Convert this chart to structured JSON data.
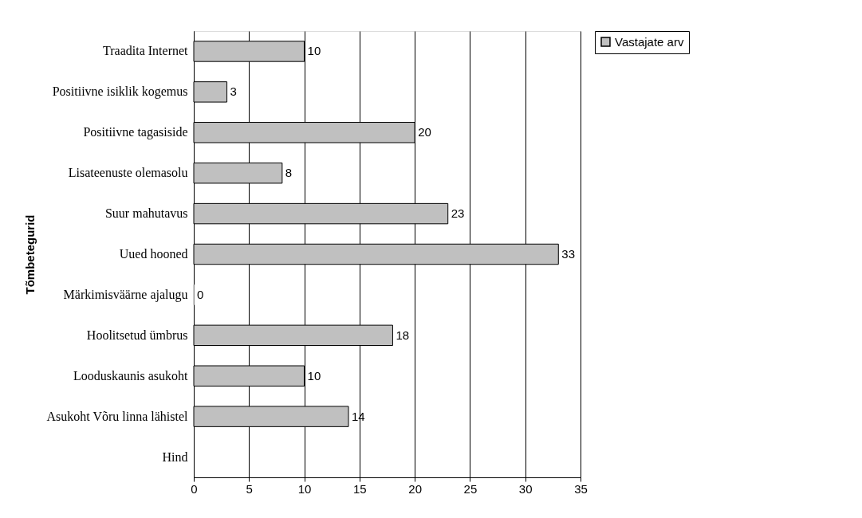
{
  "chart_data": {
    "type": "bar",
    "orientation": "horizontal",
    "ylabel": "Tõmbetegurid",
    "categories": [
      "Traadita Internet",
      "Positiivne isiklik kogemus",
      "Positiivne tagasiside",
      "Lisateenuste olemasolu",
      "Suur mahutavus",
      "Uued hooned",
      "Märkimisväärne ajalugu",
      "Hoolitsetud ümbrus",
      "Looduskaunis asukoht",
      "Asukoht Võru linna lähistel",
      "Hind"
    ],
    "series": [
      {
        "name": "Vastajate arv",
        "color": "#c0c0c0",
        "values": [
          10,
          3,
          20,
          8,
          23,
          33,
          0,
          18,
          10,
          14,
          null
        ]
      }
    ],
    "xlim": [
      0,
      35
    ],
    "xticks": [
      0,
      5,
      10,
      15,
      20,
      25,
      30,
      35
    ],
    "grid": "x",
    "legend": "right",
    "data_labels": true
  }
}
